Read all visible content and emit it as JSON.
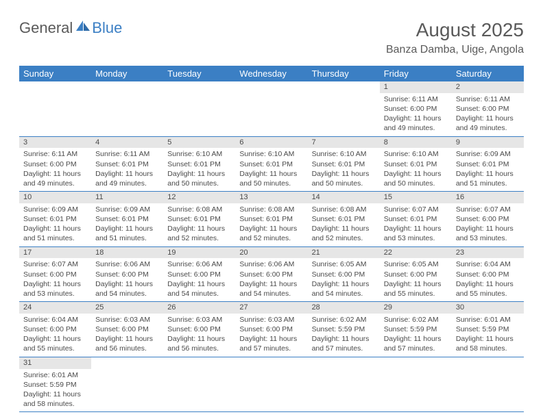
{
  "logo": {
    "text1": "General",
    "text2": "Blue"
  },
  "title": "August 2025",
  "location": "Banza Damba, Uige, Angola",
  "colors": {
    "header_bg": "#3b7fc4",
    "header_fg": "#ffffff",
    "daynum_bg": "#e6e6e6",
    "text": "#4a4a4a",
    "rule": "#3b7fc4"
  },
  "weekdays": [
    "Sunday",
    "Monday",
    "Tuesday",
    "Wednesday",
    "Thursday",
    "Friday",
    "Saturday"
  ],
  "weeks": [
    [
      null,
      null,
      null,
      null,
      null,
      {
        "n": "1",
        "sr": "6:11 AM",
        "ss": "6:00 PM",
        "dl": "11 hours and 49 minutes."
      },
      {
        "n": "2",
        "sr": "6:11 AM",
        "ss": "6:00 PM",
        "dl": "11 hours and 49 minutes."
      }
    ],
    [
      {
        "n": "3",
        "sr": "6:11 AM",
        "ss": "6:00 PM",
        "dl": "11 hours and 49 minutes."
      },
      {
        "n": "4",
        "sr": "6:11 AM",
        "ss": "6:01 PM",
        "dl": "11 hours and 49 minutes."
      },
      {
        "n": "5",
        "sr": "6:10 AM",
        "ss": "6:01 PM",
        "dl": "11 hours and 50 minutes."
      },
      {
        "n": "6",
        "sr": "6:10 AM",
        "ss": "6:01 PM",
        "dl": "11 hours and 50 minutes."
      },
      {
        "n": "7",
        "sr": "6:10 AM",
        "ss": "6:01 PM",
        "dl": "11 hours and 50 minutes."
      },
      {
        "n": "8",
        "sr": "6:10 AM",
        "ss": "6:01 PM",
        "dl": "11 hours and 50 minutes."
      },
      {
        "n": "9",
        "sr": "6:09 AM",
        "ss": "6:01 PM",
        "dl": "11 hours and 51 minutes."
      }
    ],
    [
      {
        "n": "10",
        "sr": "6:09 AM",
        "ss": "6:01 PM",
        "dl": "11 hours and 51 minutes."
      },
      {
        "n": "11",
        "sr": "6:09 AM",
        "ss": "6:01 PM",
        "dl": "11 hours and 51 minutes."
      },
      {
        "n": "12",
        "sr": "6:08 AM",
        "ss": "6:01 PM",
        "dl": "11 hours and 52 minutes."
      },
      {
        "n": "13",
        "sr": "6:08 AM",
        "ss": "6:01 PM",
        "dl": "11 hours and 52 minutes."
      },
      {
        "n": "14",
        "sr": "6:08 AM",
        "ss": "6:01 PM",
        "dl": "11 hours and 52 minutes."
      },
      {
        "n": "15",
        "sr": "6:07 AM",
        "ss": "6:01 PM",
        "dl": "11 hours and 53 minutes."
      },
      {
        "n": "16",
        "sr": "6:07 AM",
        "ss": "6:00 PM",
        "dl": "11 hours and 53 minutes."
      }
    ],
    [
      {
        "n": "17",
        "sr": "6:07 AM",
        "ss": "6:00 PM",
        "dl": "11 hours and 53 minutes."
      },
      {
        "n": "18",
        "sr": "6:06 AM",
        "ss": "6:00 PM",
        "dl": "11 hours and 54 minutes."
      },
      {
        "n": "19",
        "sr": "6:06 AM",
        "ss": "6:00 PM",
        "dl": "11 hours and 54 minutes."
      },
      {
        "n": "20",
        "sr": "6:06 AM",
        "ss": "6:00 PM",
        "dl": "11 hours and 54 minutes."
      },
      {
        "n": "21",
        "sr": "6:05 AM",
        "ss": "6:00 PM",
        "dl": "11 hours and 54 minutes."
      },
      {
        "n": "22",
        "sr": "6:05 AM",
        "ss": "6:00 PM",
        "dl": "11 hours and 55 minutes."
      },
      {
        "n": "23",
        "sr": "6:04 AM",
        "ss": "6:00 PM",
        "dl": "11 hours and 55 minutes."
      }
    ],
    [
      {
        "n": "24",
        "sr": "6:04 AM",
        "ss": "6:00 PM",
        "dl": "11 hours and 55 minutes."
      },
      {
        "n": "25",
        "sr": "6:03 AM",
        "ss": "6:00 PM",
        "dl": "11 hours and 56 minutes."
      },
      {
        "n": "26",
        "sr": "6:03 AM",
        "ss": "6:00 PM",
        "dl": "11 hours and 56 minutes."
      },
      {
        "n": "27",
        "sr": "6:03 AM",
        "ss": "6:00 PM",
        "dl": "11 hours and 57 minutes."
      },
      {
        "n": "28",
        "sr": "6:02 AM",
        "ss": "5:59 PM",
        "dl": "11 hours and 57 minutes."
      },
      {
        "n": "29",
        "sr": "6:02 AM",
        "ss": "5:59 PM",
        "dl": "11 hours and 57 minutes."
      },
      {
        "n": "30",
        "sr": "6:01 AM",
        "ss": "5:59 PM",
        "dl": "11 hours and 58 minutes."
      }
    ],
    [
      {
        "n": "31",
        "sr": "6:01 AM",
        "ss": "5:59 PM",
        "dl": "11 hours and 58 minutes."
      },
      null,
      null,
      null,
      null,
      null,
      null
    ]
  ],
  "labels": {
    "sunrise": "Sunrise:",
    "sunset": "Sunset:",
    "daylight": "Daylight:"
  }
}
